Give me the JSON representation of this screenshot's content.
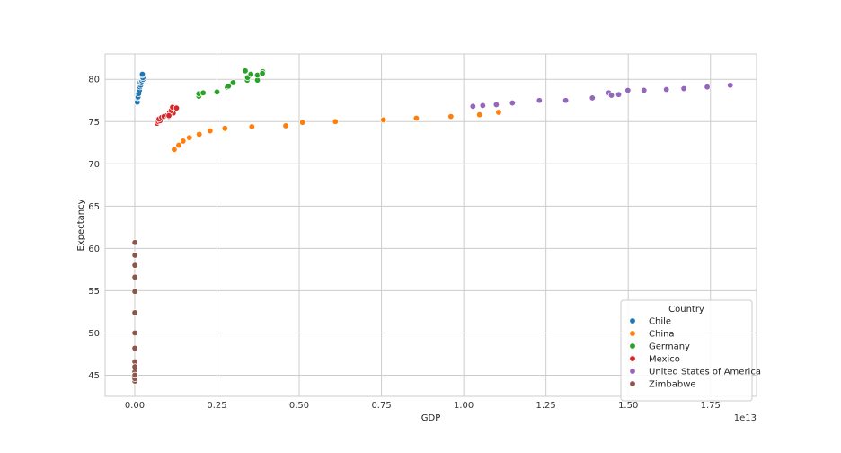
{
  "chart_data": {
    "type": "scatter",
    "xlabel": "GDP",
    "ylabel": "Expectancy",
    "x_offset_label": "1e13",
    "xlim": [
      -0.09,
      1.89
    ],
    "ylim": [
      42.5,
      83.0
    ],
    "x_ticks": [
      0.0,
      0.25,
      0.5,
      0.75,
      1.0,
      1.25,
      1.5,
      1.75
    ],
    "x_tick_labels": [
      "0.00",
      "0.25",
      "0.50",
      "0.75",
      "1.00",
      "1.25",
      "1.50",
      "1.75"
    ],
    "y_ticks": [
      45,
      50,
      55,
      60,
      65,
      70,
      75,
      80
    ],
    "y_tick_labels": [
      "45",
      "50",
      "55",
      "60",
      "65",
      "70",
      "75",
      "80"
    ],
    "grid": true,
    "legend": {
      "title": "Country",
      "placement": "lower-right"
    },
    "series": [
      {
        "name": "Chile",
        "color": "#1f77b4",
        "points": [
          [
            0.0078,
            77.3
          ],
          [
            0.0085,
            77.8
          ],
          [
            0.0099,
            77.9
          ],
          [
            0.0119,
            78.3
          ],
          [
            0.0143,
            78.7
          ],
          [
            0.0157,
            79.1
          ],
          [
            0.0179,
            79.3
          ],
          [
            0.0162,
            79.6
          ],
          [
            0.0199,
            79.6
          ],
          [
            0.0221,
            79.8
          ],
          [
            0.0253,
            80.0
          ],
          [
            0.0247,
            80.2
          ],
          [
            0.0229,
            80.5
          ],
          [
            0.0231,
            80.6
          ]
        ]
      },
      {
        "name": "China",
        "color": "#ff7f0e",
        "points": [
          [
            0.12,
            71.7
          ],
          [
            0.134,
            72.2
          ],
          [
            0.147,
            72.7
          ],
          [
            0.166,
            73.1
          ],
          [
            0.196,
            73.5
          ],
          [
            0.229,
            73.9
          ],
          [
            0.274,
            74.2
          ],
          [
            0.356,
            74.4
          ],
          [
            0.459,
            74.5
          ],
          [
            0.51,
            74.9
          ],
          [
            0.61,
            75.0
          ],
          [
            0.756,
            75.2
          ],
          [
            0.856,
            75.4
          ],
          [
            0.961,
            75.6
          ],
          [
            1.048,
            75.8
          ],
          [
            1.106,
            76.1
          ]
        ]
      },
      {
        "name": "Germany",
        "color": "#2ca02c",
        "points": [
          [
            0.195,
            78.0
          ],
          [
            0.195,
            78.3
          ],
          [
            0.208,
            78.4
          ],
          [
            0.25,
            78.5
          ],
          [
            0.281,
            79.1
          ],
          [
            0.285,
            79.2
          ],
          [
            0.299,
            79.6
          ],
          [
            0.342,
            79.9
          ],
          [
            0.343,
            80.2
          ],
          [
            0.336,
            81.0
          ],
          [
            0.353,
            80.6
          ],
          [
            0.373,
            79.9
          ],
          [
            0.373,
            80.5
          ],
          [
            0.389,
            80.9
          ],
          [
            0.388,
            80.7
          ]
        ]
      },
      {
        "name": "Mexico",
        "color": "#d62728",
        "points": [
          [
            0.068,
            74.8
          ],
          [
            0.072,
            75.0
          ],
          [
            0.077,
            75.1
          ],
          [
            0.074,
            75.3
          ],
          [
            0.082,
            75.5
          ],
          [
            0.089,
            75.6
          ],
          [
            0.098,
            75.7
          ],
          [
            0.104,
            75.6
          ],
          [
            0.106,
            76.1
          ],
          [
            0.117,
            76.0
          ],
          [
            0.111,
            76.3
          ],
          [
            0.115,
            76.7
          ],
          [
            0.127,
            76.6
          ],
          [
            0.104,
            75.7
          ]
        ]
      },
      {
        "name": "United States of America",
        "color": "#9467bd",
        "points": [
          [
            1.028,
            76.8
          ],
          [
            1.058,
            76.9
          ],
          [
            1.099,
            77.0
          ],
          [
            1.148,
            77.2
          ],
          [
            1.23,
            77.5
          ],
          [
            1.31,
            77.5
          ],
          [
            1.391,
            77.8
          ],
          [
            1.441,
            78.4
          ],
          [
            1.449,
            78.1
          ],
          [
            1.471,
            78.2
          ],
          [
            1.499,
            78.7
          ],
          [
            1.548,
            78.7
          ],
          [
            1.616,
            78.8
          ],
          [
            1.669,
            78.9
          ],
          [
            1.74,
            79.1
          ],
          [
            1.81,
            79.3
          ]
        ]
      },
      {
        "name": "Zimbabwe",
        "color": "#8c564b",
        "points": [
          [
            0.0006,
            60.7
          ],
          [
            0.0006,
            59.2
          ],
          [
            0.0005,
            58.0
          ],
          [
            0.0005,
            56.6
          ],
          [
            0.0004,
            54.9
          ],
          [
            0.0004,
            52.4
          ],
          [
            0.0004,
            50.0
          ],
          [
            0.0004,
            48.2
          ],
          [
            0.0004,
            46.6
          ],
          [
            0.0004,
            46.0
          ],
          [
            0.0004,
            45.4
          ],
          [
            0.0004,
            44.8
          ],
          [
            0.0004,
            44.5
          ],
          [
            0.0004,
            44.3
          ],
          [
            0.0004,
            44.6
          ],
          [
            0.0004,
            45.0
          ]
        ]
      }
    ]
  }
}
